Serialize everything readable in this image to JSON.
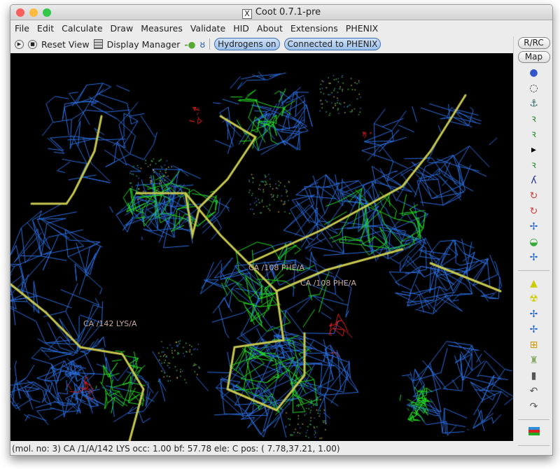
{
  "window": {
    "title": "Coot 0.7.1-pre"
  },
  "menu": [
    "File",
    "Edit",
    "Calculate",
    "Draw",
    "Measures",
    "Validate",
    "HID",
    "About",
    "Extensions",
    "PHENIX"
  ],
  "toolbar": {
    "reset_view": "Reset View",
    "display_manager": "Display Manager",
    "hydrogens": "Hydrogens on",
    "phenix": "Connected to PHENIX"
  },
  "side": {
    "rrc": "R/RC",
    "map": "Map",
    "icons": [
      "rotate-translate-zone-icon",
      "auto-fit-rotamer-icon",
      "rotamers-icon",
      "edit-chi-angles-icon",
      "torsion-general-icon",
      "more-arrow-icon",
      "regularize-icon",
      "refine-icon",
      "flip-peptide-icon",
      "side-chain-180-icon",
      "cis-trans-icon",
      "side-chain-icon",
      "mutate-auto-fit-icon"
    ],
    "icons2": [
      "add-terminal-residue-icon",
      "add-alt-conf-icon",
      "place-atom-icon",
      "add-residue-icon",
      "add-water-icon",
      "backrub-icon",
      "delete-icon",
      "undo-icon",
      "redo-icon"
    ]
  },
  "viewport": {
    "labels": [
      "CA /108 PHE/A",
      "CA /108 PHE/A",
      "CA /142 LYS/A"
    ],
    "colors": {
      "map": "#2a6fe0",
      "diff_pos": "#22dd22",
      "diff_neg": "#dd2222",
      "bonds": "#c8c850",
      "background": "#000000"
    }
  },
  "status": "(mol. no: 3)  CA /1/A/142 LYS occ:  1.00 bf: 57.78 ele:  C pos: ( 7.78,37.21, 1.00)"
}
